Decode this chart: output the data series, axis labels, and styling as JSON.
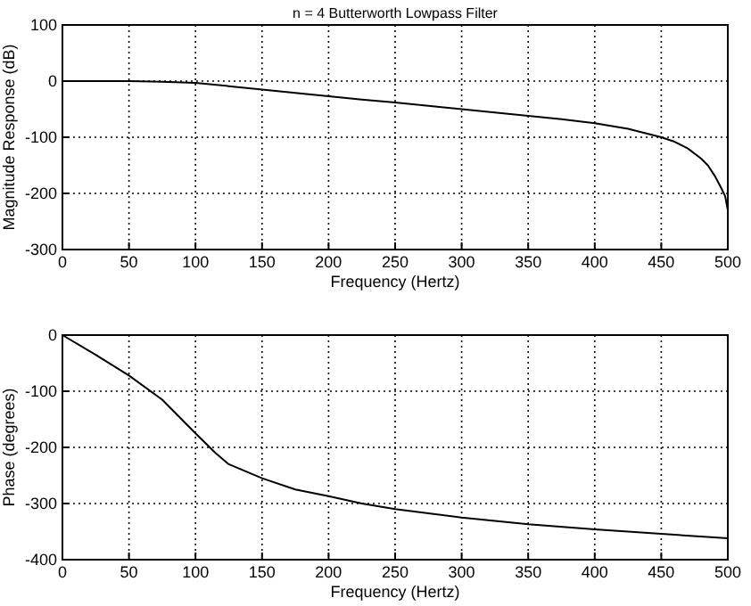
{
  "chart_data": [
    {
      "type": "line",
      "title": "n = 4 Butterworth Lowpass Filter",
      "xlabel": "Frequency (Hertz)",
      "ylabel": "Magnitude Response (dB)",
      "grid": true,
      "color": "#000000",
      "x": [
        0,
        25,
        50,
        75,
        100,
        125,
        150,
        175,
        200,
        225,
        250,
        275,
        300,
        325,
        350,
        375,
        400,
        425,
        450,
        460,
        470,
        480,
        485,
        490,
        495,
        498,
        500
      ],
      "values": [
        0,
        0,
        0,
        -1,
        -3,
        -9,
        -15,
        -21,
        -27,
        -33,
        -38,
        -44,
        -50,
        -56,
        -62,
        -68,
        -75,
        -85,
        -100,
        -108,
        -120,
        -138,
        -150,
        -168,
        -190,
        -205,
        -230
      ],
      "xlim": [
        0,
        500
      ],
      "xticks": [
        0,
        50,
        100,
        150,
        200,
        250,
        300,
        350,
        400,
        450,
        500
      ],
      "ylim": [
        -300,
        100
      ],
      "yticks": [
        -300,
        -200,
        -100,
        0,
        100
      ]
    },
    {
      "type": "line",
      "xlabel": "Frequency (Hertz)",
      "ylabel": "Phase (degrees)",
      "grid": true,
      "color": "#000000",
      "x": [
        0,
        25,
        50,
        75,
        100,
        115,
        125,
        150,
        175,
        200,
        225,
        250,
        300,
        350,
        400,
        450,
        500
      ],
      "values": [
        0,
        -35,
        -72,
        -115,
        -175,
        -210,
        -230,
        -255,
        -275,
        -287,
        -300,
        -310,
        -325,
        -337,
        -346,
        -354,
        -362
      ],
      "xlim": [
        0,
        500
      ],
      "xticks": [
        0,
        50,
        100,
        150,
        200,
        250,
        300,
        350,
        400,
        450,
        500
      ],
      "ylim": [
        -400,
        0
      ],
      "yticks": [
        -400,
        -300,
        -200,
        -100,
        0
      ]
    }
  ]
}
